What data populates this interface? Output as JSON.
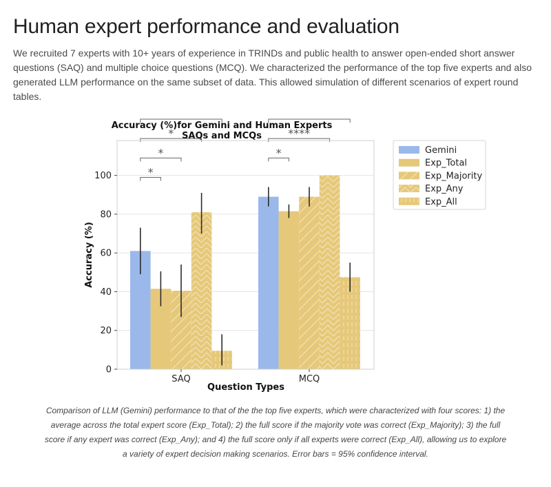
{
  "page": {
    "title": "Human expert performance and evaluation",
    "intro": "We recruited 7 experts with 10+ years of experience in TRINDs and public health to answer open-ended short answer questions (SAQ) and multiple choice questions (MCQ). We characterized the performance of the top five experts and also generated LLM performance on the same subset of data. This allowed simulation of different scenarios of expert round tables.",
    "caption": "Comparison of LLM (Gemini) performance to that of the the top five experts, which were characterized with four scores: 1) the average across the total expert score (Exp_Total); 2) the full score if the majority vote was correct (Exp_Majority); 3) the full score if any expert was correct (Exp_Any); and 4) the full score only if all experts were correct (Exp_All), allowing us to explore a variety of expert decision making scenarios. Error bars = 95% confidence interval."
  },
  "chart_data": {
    "type": "bar",
    "title": "Accuracy (%)for Gemini and Human Experts",
    "subtitle": "SAQs and MCQs",
    "xlabel": "Question Types",
    "ylabel": "Accuracy (%)",
    "categories": [
      "SAQ",
      "MCQ"
    ],
    "ylim": [
      0,
      118
    ],
    "yticks": [
      0,
      20,
      40,
      60,
      80,
      100
    ],
    "grid": true,
    "legend_position": "right, outside plot",
    "series": [
      {
        "name": "Gemini",
        "color": "#9bb8ea",
        "hatch": "none",
        "values": [
          61,
          89
        ],
        "ci_low": [
          49,
          84
        ],
        "ci_high": [
          73,
          94
        ]
      },
      {
        "name": "Exp_Total",
        "color": "#e6c87a",
        "hatch": "none",
        "values": [
          41.5,
          81.5
        ],
        "ci_low": [
          32.5,
          78
        ],
        "ci_high": [
          50.5,
          85
        ]
      },
      {
        "name": "Exp_Majority",
        "color": "#e6c87a",
        "hatch": "diagonal",
        "values": [
          40.5,
          89
        ],
        "ci_low": [
          27,
          84
        ],
        "ci_high": [
          54,
          94
        ]
      },
      {
        "name": "Exp_Any",
        "color": "#e6c87a",
        "hatch": "chevron",
        "values": [
          81,
          100
        ],
        "ci_low": [
          70,
          100
        ],
        "ci_high": [
          91,
          100
        ]
      },
      {
        "name": "Exp_All",
        "color": "#e6c87a",
        "hatch": "vertical-dashes",
        "values": [
          9.5,
          47.5
        ],
        "ci_low": [
          2,
          40
        ],
        "ci_high": [
          18,
          55
        ]
      }
    ],
    "significance": [
      {
        "category": "SAQ",
        "from": "Gemini",
        "to": "Exp_Total",
        "label": "*"
      },
      {
        "category": "SAQ",
        "from": "Gemini",
        "to": "Exp_Majority",
        "label": "*"
      },
      {
        "category": "SAQ",
        "from": "Gemini",
        "to": "Exp_Any",
        "label": "*"
      },
      {
        "category": "SAQ",
        "from": "Gemini",
        "to": "Exp_All",
        "label": "****"
      },
      {
        "category": "MCQ",
        "from": "Gemini",
        "to": "Exp_Total",
        "label": "*"
      },
      {
        "category": "MCQ",
        "from": "Gemini",
        "to": "Exp_Any",
        "label": "****"
      },
      {
        "category": "MCQ",
        "from": "Gemini",
        "to": "Exp_All",
        "label": "****"
      }
    ]
  }
}
